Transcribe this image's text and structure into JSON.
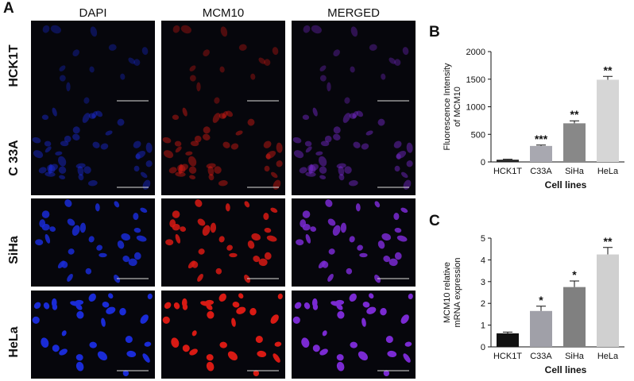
{
  "panel_labels": {
    "a": "A",
    "b": "B",
    "c": "C"
  },
  "microscopy": {
    "columns": [
      "DAPI",
      "MCM10",
      "MERGED"
    ],
    "rows": [
      {
        "label": "HCK1T",
        "density": "sparse",
        "brightness": 0.35
      },
      {
        "label": "C 33A",
        "density": "dense",
        "brightness": 0.45
      },
      {
        "label": "SiHa",
        "density": "medium",
        "brightness": 0.85
      },
      {
        "label": "HeLa",
        "density": "medium",
        "brightness": 1.0
      }
    ],
    "channel_colors": {
      "DAPI": "#1a2bd6",
      "MCM10": "#d81a14",
      "MERGED": "#7a2ad2"
    }
  },
  "chart_data": [
    {
      "type": "bar",
      "panel": "B",
      "categories": [
        "HCK1T",
        "C33A",
        "SiHa",
        "HeLa"
      ],
      "values": [
        40,
        290,
        700,
        1490
      ],
      "errors": [
        8,
        15,
        45,
        60
      ],
      "significance": [
        "",
        "***",
        "**",
        "**"
      ],
      "colors": [
        "#222222",
        "#a8a8b0",
        "#888888",
        "#d6d6d6"
      ],
      "xlabel": "Cell lines",
      "ylabel_lines": [
        "Fluorescence Intensity",
        "of MCM10"
      ],
      "ylim": [
        0,
        2000
      ],
      "yticks": [
        0,
        500,
        1000,
        1500,
        2000
      ]
    },
    {
      "type": "bar",
      "panel": "C",
      "categories": [
        "HCK1T",
        "C33A",
        "SiHa",
        "HeLa"
      ],
      "values": [
        0.62,
        1.65,
        2.75,
        4.25
      ],
      "errors": [
        0.06,
        0.22,
        0.28,
        0.32
      ],
      "significance": [
        "",
        "*",
        "*",
        "**"
      ],
      "colors": [
        "#111111",
        "#a0a0a8",
        "#808080",
        "#d0d0d0"
      ],
      "xlabel": "Cell lines",
      "ylabel_lines": [
        "MCM10 relative",
        "mRNA expression"
      ],
      "ylim": [
        0,
        5
      ],
      "yticks": [
        0,
        1,
        2,
        3,
        4,
        5
      ]
    }
  ]
}
